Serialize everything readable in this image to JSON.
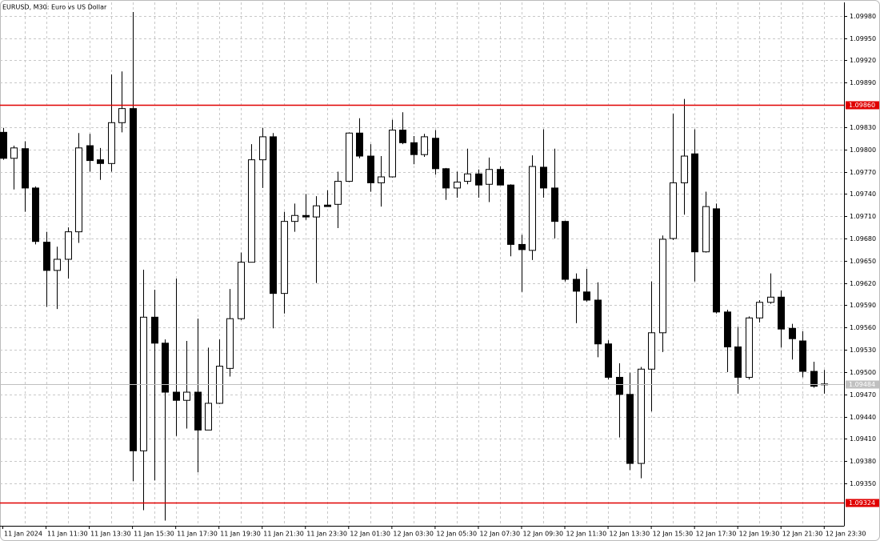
{
  "chart_data": {
    "type": "candlestick",
    "title": "EURUSD, M30:  Euro vs US Dollar",
    "categories": [
      "11 Jan 2024",
      null,
      null,
      null,
      "11 Jan 11:30",
      null,
      null,
      null,
      "11 Jan 13:30",
      null,
      null,
      null,
      "11 Jan 15:30",
      null,
      null,
      null,
      "11 Jan 17:30",
      null,
      null,
      null,
      "11 Jan 19:30",
      null,
      null,
      null,
      "11 Jan 21:30",
      null,
      null,
      null,
      "11 Jan 23:30",
      null,
      null,
      null,
      "12 Jan 01:30",
      null,
      null,
      null,
      "12 Jan 03:30",
      null,
      null,
      null,
      "12 Jan 05:30",
      null,
      null,
      null,
      "12 Jan 07:30",
      null,
      null,
      null,
      "12 Jan 09:30",
      null,
      null,
      null,
      "12 Jan 11:30",
      null,
      null,
      null,
      "12 Jan 13:30",
      null,
      null,
      null,
      "12 Jan 15:30",
      null,
      null,
      null,
      "12 Jan 17:30",
      null,
      null,
      null,
      "12 Jan 19:30",
      null,
      null,
      null,
      "12 Jan 21:30",
      null,
      null,
      null,
      "12 Jan 23:30"
    ],
    "open": [
      1.09823,
      1.09788,
      1.09801,
      1.09748,
      1.09675,
      1.09637,
      1.09652,
      1.09689,
      1.09805,
      1.09786,
      1.09781,
      1.09836,
      1.09855,
      1.09394,
      1.09574,
      1.09539,
      1.09473,
      1.09462,
      1.09473,
      1.09422,
      1.09458,
      1.09505,
      1.09572,
      1.09648,
      1.09786,
      1.09817,
      1.09606,
      1.09703,
      1.09711,
      1.09709,
      1.09725,
      1.09726,
      1.09757,
      1.09822,
      1.09791,
      1.09755,
      1.09763,
      1.09826,
      1.09809,
      1.09793,
      1.09815,
      1.09774,
      1.09748,
      1.09757,
      1.09767,
      1.09753,
      1.09773,
      1.09752,
      1.09672,
      1.09664,
      1.09776,
      1.09748,
      1.09703,
      1.09625,
      1.09608,
      1.09597,
      1.09538,
      1.09493,
      1.0947,
      1.09377,
      1.09504,
      1.09553,
      1.0968,
      1.09755,
      1.09794,
      1.09662,
      1.0972,
      1.09581,
      1.09534,
      1.09493,
      1.09573,
      1.09594,
      1.09601,
      1.09559,
      1.09542,
      1.09501,
      1.09484
    ],
    "high": [
      1.09829,
      1.09805,
      1.09811,
      1.0975,
      1.09689,
      1.09669,
      1.09695,
      1.09822,
      1.09821,
      1.09802,
      1.09901,
      1.09905,
      1.09985,
      1.09638,
      1.09611,
      1.09544,
      1.09626,
      1.09542,
      1.09572,
      1.09533,
      1.09544,
      1.09612,
      1.09661,
      1.09807,
      1.09829,
      1.09822,
      1.09716,
      1.09727,
      1.0974,
      1.09737,
      1.09745,
      1.0977,
      1.09823,
      1.09842,
      1.09807,
      1.09791,
      1.0984,
      1.0985,
      1.09818,
      1.09821,
      1.09826,
      1.09775,
      1.0977,
      1.09801,
      1.09773,
      1.09789,
      1.09777,
      1.09753,
      1.09685,
      1.09792,
      1.09827,
      1.09801,
      1.09704,
      1.09633,
      1.09639,
      1.09621,
      1.09543,
      1.09512,
      1.09499,
      1.09507,
      1.09622,
      1.09684,
      1.09848,
      1.09868,
      1.09827,
      1.09743,
      1.09727,
      1.09584,
      1.09561,
      1.09575,
      1.09597,
      1.09633,
      1.0961,
      1.09565,
      1.09555,
      1.09514,
      1.09503
    ],
    "low": [
      1.09786,
      1.09746,
      1.09716,
      1.09672,
      1.09588,
      1.09585,
      1.09626,
      1.09674,
      1.0977,
      1.09759,
      1.0977,
      1.09823,
      1.09353,
      1.09314,
      1.09354,
      1.093,
      1.09414,
      1.09424,
      1.09365,
      1.09422,
      1.09457,
      1.09494,
      1.0957,
      1.09648,
      1.09748,
      1.09559,
      1.09579,
      1.09689,
      1.09705,
      1.0962,
      1.09724,
      1.09694,
      1.09756,
      1.09788,
      1.09743,
      1.09723,
      1.09762,
      1.09807,
      1.0978,
      1.0979,
      1.09766,
      1.09732,
      1.09735,
      1.09753,
      1.09735,
      1.09729,
      1.09752,
      1.09656,
      1.09608,
      1.09651,
      1.09735,
      1.0968,
      1.09622,
      1.09566,
      1.09595,
      1.0952,
      1.0949,
      1.09412,
      1.09368,
      1.09357,
      1.09447,
      1.09527,
      1.09678,
      1.09712,
      1.09622,
      1.09661,
      1.09579,
      1.095,
      1.09471,
      1.0949,
      1.09567,
      1.09592,
      1.09533,
      1.09517,
      1.09493,
      1.09479,
      1.09471
    ],
    "close": [
      1.09788,
      1.09802,
      1.09748,
      1.09676,
      1.09637,
      1.09652,
      1.09689,
      1.09802,
      1.09785,
      1.09781,
      1.09836,
      1.09855,
      1.09394,
      1.09574,
      1.09539,
      1.09473,
      1.09462,
      1.09473,
      1.09422,
      1.09458,
      1.09508,
      1.09572,
      1.09648,
      1.09786,
      1.09817,
      1.09606,
      1.09703,
      1.09711,
      1.09709,
      1.09724,
      1.09723,
      1.09757,
      1.09822,
      1.09791,
      1.09755,
      1.09763,
      1.09826,
      1.09809,
      1.09793,
      1.09817,
      1.09774,
      1.09748,
      1.09756,
      1.09767,
      1.09752,
      1.09773,
      1.09752,
      1.09672,
      1.09665,
      1.09777,
      1.09748,
      1.09703,
      1.09625,
      1.09609,
      1.09597,
      1.09538,
      1.09493,
      1.0947,
      1.09377,
      1.09504,
      1.09553,
      1.09679,
      1.09755,
      1.09791,
      1.09662,
      1.09723,
      1.09581,
      1.09534,
      1.09493,
      1.09573,
      1.09594,
      1.09601,
      1.09558,
      1.09545,
      1.09501,
      1.09481,
      1.09484
    ],
    "bull_color": "#ffffff",
    "bear_color": "#000000",
    "ylim": [
      1.09293,
      1.09998
    ],
    "yticks": [
      {
        "value": 1.0998,
        "label": "1.09980"
      },
      {
        "value": 1.0995,
        "label": "1.09950"
      },
      {
        "value": 1.0992,
        "label": "1.09920"
      },
      {
        "value": 1.0989,
        "label": "1.09890"
      },
      {
        "value": 1.0983,
        "label": "1.09830"
      },
      {
        "value": 1.098,
        "label": "1.09800"
      },
      {
        "value": 1.0977,
        "label": "1.09770"
      },
      {
        "value": 1.0974,
        "label": "1.09740"
      },
      {
        "value": 1.0971,
        "label": "1.09710"
      },
      {
        "value": 1.0968,
        "label": "1.09680"
      },
      {
        "value": 1.0965,
        "label": "1.09650"
      },
      {
        "value": 1.0962,
        "label": "1.09620"
      },
      {
        "value": 1.0959,
        "label": "1.09590"
      },
      {
        "value": 1.0956,
        "label": "1.09560"
      },
      {
        "value": 1.0953,
        "label": "1.09530"
      },
      {
        "value": 1.095,
        "label": "1.09500"
      },
      {
        "value": 1.0947,
        "label": "1.09470"
      },
      {
        "value": 1.0944,
        "label": "1.09440"
      },
      {
        "value": 1.0941,
        "label": "1.09410"
      },
      {
        "value": 1.0938,
        "label": "1.09380"
      },
      {
        "value": 1.0935,
        "label": "1.09350"
      }
    ],
    "levels": [
      {
        "value": 1.0986,
        "label": "1.09860",
        "color": "#e00000"
      },
      {
        "value": 1.09324,
        "label": "1.09324",
        "color": "#e00000"
      },
      {
        "value": 1.09484,
        "label": "1.09484",
        "color": "#c0c0c0"
      }
    ],
    "grid": true
  }
}
